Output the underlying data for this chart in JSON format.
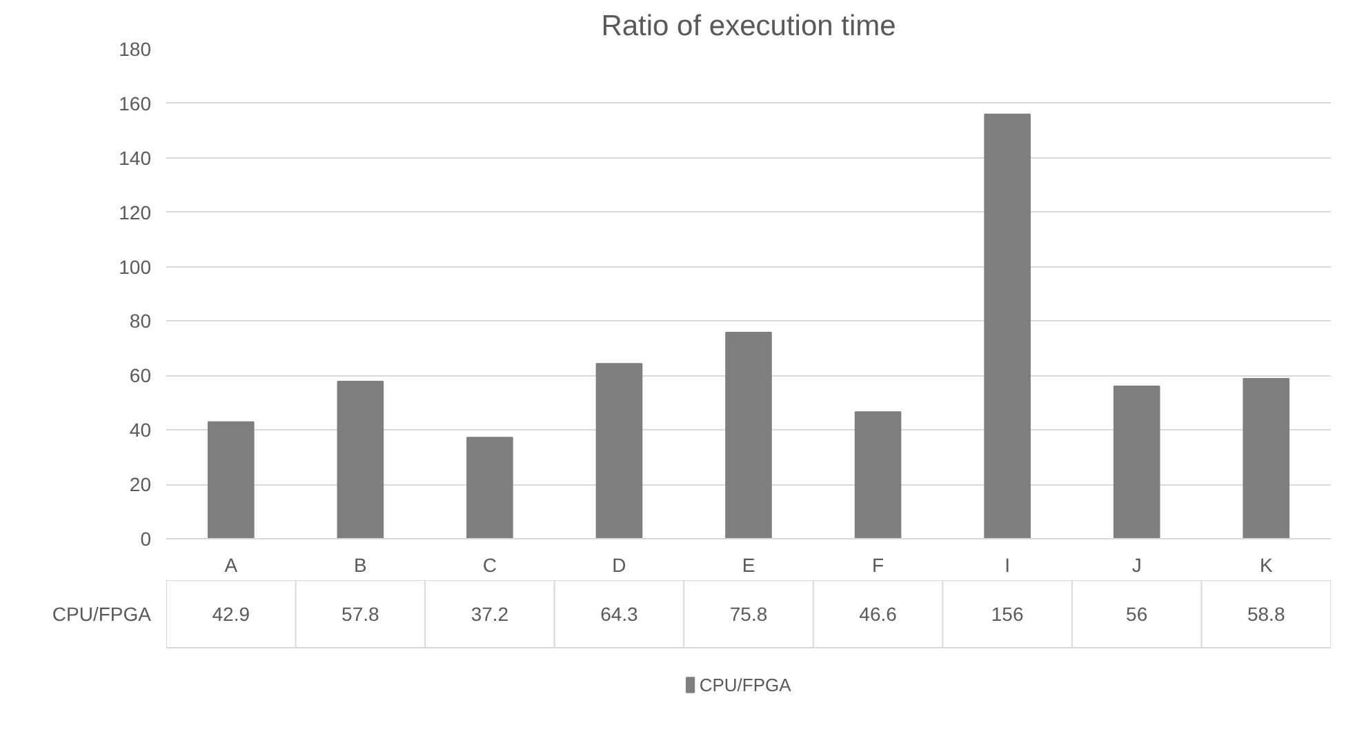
{
  "chart_data": {
    "type": "bar",
    "title": "Ratio of execution time",
    "categories": [
      "A",
      "B",
      "C",
      "D",
      "E",
      "F",
      "I",
      "J",
      "K"
    ],
    "series": [
      {
        "name": "CPU/FPGA",
        "color": "#7f7f7f",
        "values": [
          42.9,
          57.8,
          37.2,
          64.3,
          75.8,
          46.6,
          156,
          56,
          58.8
        ]
      }
    ],
    "ylim": [
      0,
      180
    ],
    "yticks": [
      0,
      20,
      40,
      60,
      80,
      100,
      120,
      140,
      160,
      180
    ],
    "grid": "y",
    "legend": "bottom",
    "data_labels": true
  }
}
